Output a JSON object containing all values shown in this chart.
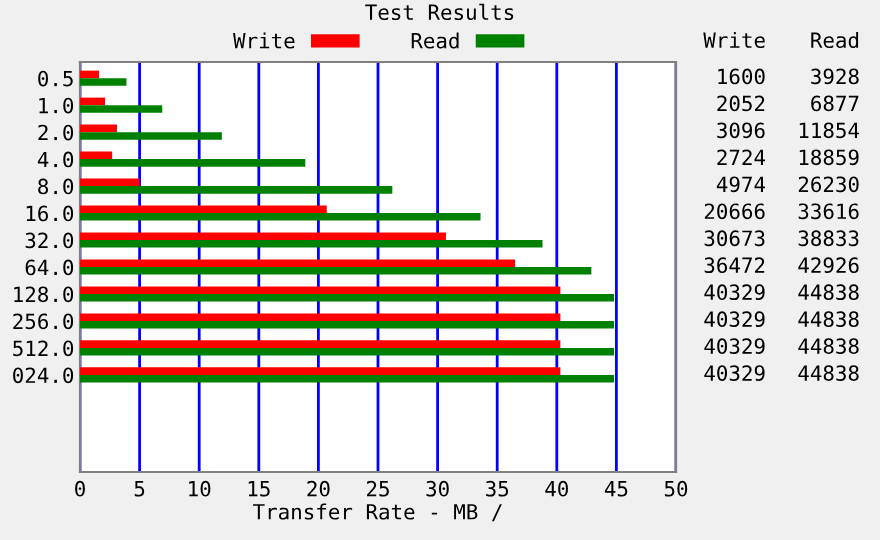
{
  "chart_data": {
    "type": "bar",
    "orientation": "horizontal",
    "title": "Test Results",
    "xlabel": "Transfer Rate - MB /",
    "categories": [
      "0.5",
      "1.0",
      "2.0",
      "4.0",
      "8.0",
      "16.0",
      "32.0",
      "64.0",
      "128.0",
      "256.0",
      "512.0",
      "024.0"
    ],
    "series": [
      {
        "name": "Write",
        "color": "#ff0000",
        "values": [
          1.6,
          2.1,
          3.1,
          2.7,
          5.0,
          20.7,
          30.7,
          36.5,
          40.3,
          40.3,
          40.3,
          40.3
        ]
      },
      {
        "name": "Read",
        "color": "#008000",
        "values": [
          3.9,
          6.9,
          11.9,
          18.9,
          26.2,
          33.6,
          38.8,
          42.9,
          44.8,
          44.8,
          44.8,
          44.8
        ]
      }
    ],
    "annotations": [
      "1600",
      "3928",
      "2052",
      "6877",
      "3096",
      "11854",
      "2724",
      "18859",
      "4974",
      "26230",
      "20666",
      "33616",
      "30673",
      "38833",
      "36472",
      "42926",
      "40329",
      "44838",
      "40329",
      "44838",
      "40329",
      "44838",
      "40329",
      "44838"
    ],
    "xlim": [
      0,
      50
    ],
    "xticks": [
      0,
      5,
      10,
      15,
      20,
      25,
      30,
      35,
      40,
      45,
      50
    ],
    "grid": "x",
    "legend": "top"
  }
}
